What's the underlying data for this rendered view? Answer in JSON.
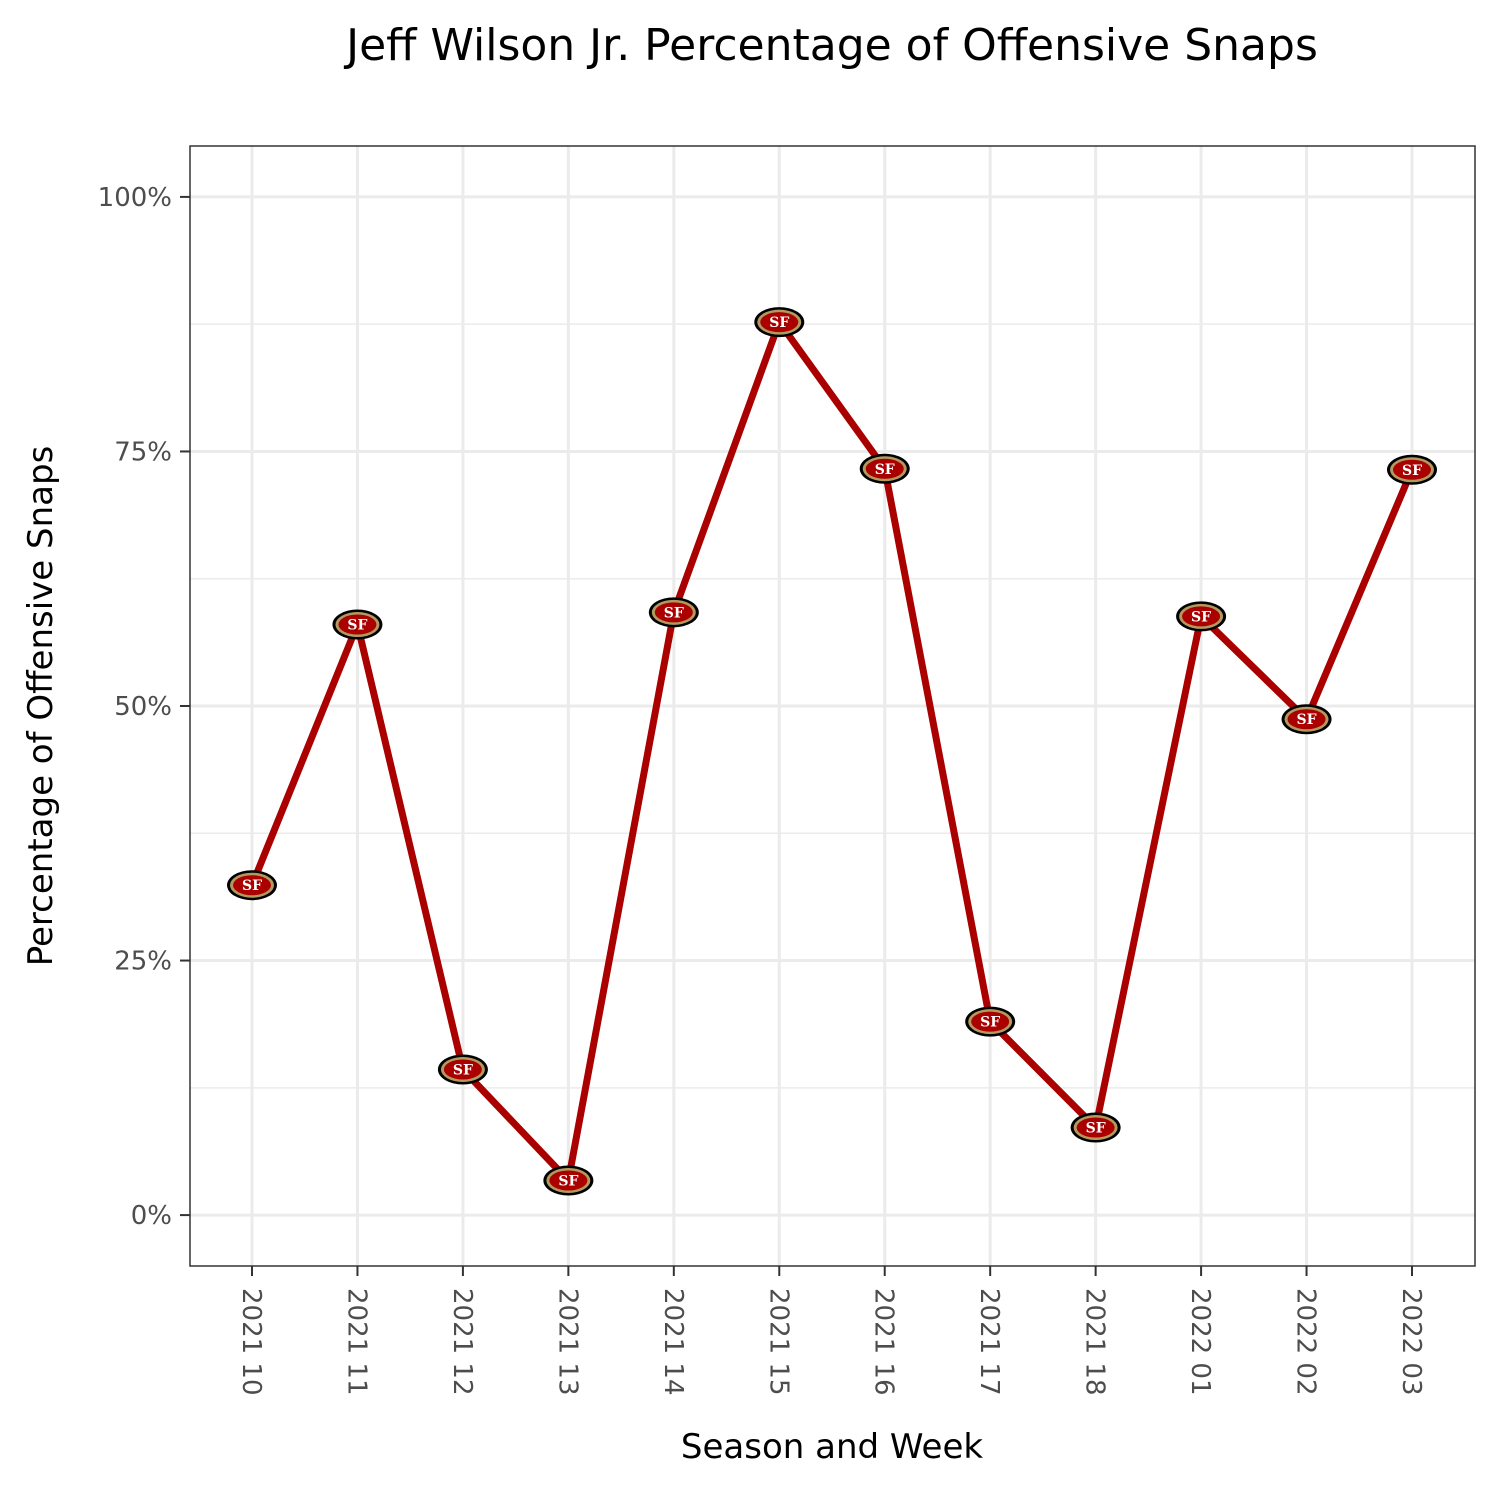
{
  "chart_data": {
    "type": "line",
    "title": "Jeff Wilson Jr. Percentage of Offensive Snaps",
    "xlabel": "Season and Week",
    "ylabel": "Percentage of Offensive Snaps",
    "categories": [
      "2021 10",
      "2021 11",
      "2021 12",
      "2021 13",
      "2021 14",
      "2021 15",
      "2021 16",
      "2021 17",
      "2021 18",
      "2022 01",
      "2022 02",
      "2022 03"
    ],
    "values": [
      32.4,
      58.0,
      14.3,
      3.4,
      59.2,
      87.7,
      73.3,
      19.0,
      8.6,
      58.8,
      48.7,
      73.2
    ],
    "ylim": [
      -5,
      105
    ],
    "yticks": [
      0,
      25,
      50,
      75,
      100
    ],
    "ytick_labels": [
      "0%",
      "25%",
      "50%",
      "75%",
      "100%"
    ],
    "grid": true,
    "legend": "none",
    "line_color": "#aa0000",
    "marker_icon": "sf-49ers-logo-icon",
    "marker_colors": {
      "fill": "#aa0000",
      "ring": "#b3995d",
      "outline": "#000000",
      "text": "#ffffff"
    },
    "marker_text": "SF"
  }
}
